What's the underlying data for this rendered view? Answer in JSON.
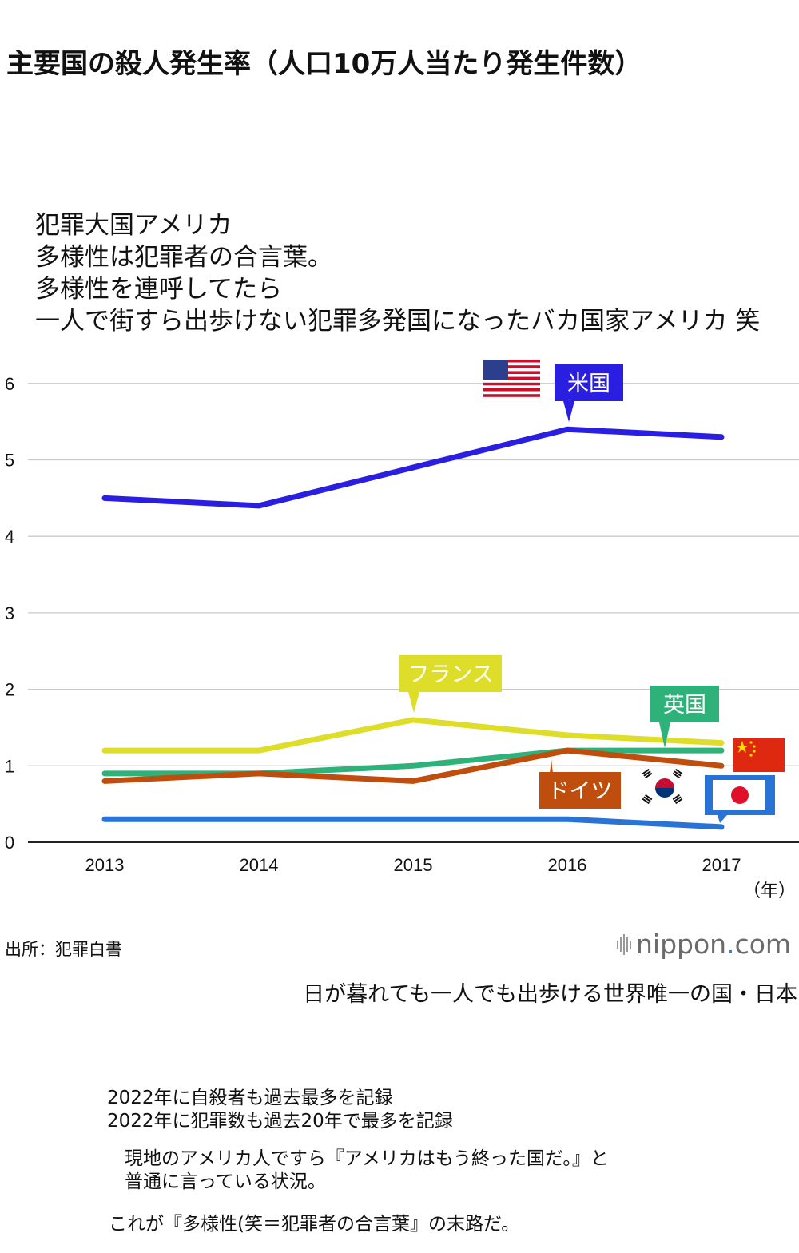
{
  "title": "主要国の殺人発生率（人口10万人当たり発生件数）",
  "caption_lines": [
    "犯罪大国アメリカ",
    "多様性は犯罪者の合言葉。",
    "多様性を連呼してたら",
    "一人で街すら出歩けない犯罪多発国になったバカ国家アメリカ 笑"
  ],
  "chart_data": {
    "type": "line",
    "x": [
      "2013",
      "2014",
      "2015",
      "2016",
      "2017"
    ],
    "xunit": "（年）",
    "ylim": [
      0,
      6
    ],
    "yticks": [
      "0",
      "1",
      "2",
      "3",
      "4",
      "5",
      "6"
    ],
    "grid": true,
    "series": [
      {
        "name": "米国",
        "color": "#2a1fe0",
        "values": [
          4.5,
          4.4,
          4.9,
          5.4,
          5.3
        ]
      },
      {
        "name": "フランス",
        "color": "#dedd2a",
        "values": [
          1.2,
          1.2,
          1.6,
          1.4,
          1.3
        ]
      },
      {
        "name": "英国",
        "color": "#2fb27a",
        "values": [
          0.9,
          0.9,
          1.0,
          1.2,
          1.2
        ]
      },
      {
        "name": "ドイツ",
        "color": "#bf4e0e",
        "values": [
          0.8,
          0.9,
          0.8,
          1.2,
          1.0
        ]
      },
      {
        "name": "",
        "color": "#2a73d6",
        "values": [
          0.3,
          0.3,
          0.3,
          0.3,
          0.2
        ]
      }
    ],
    "flags": [
      "usa-flag",
      "china-flag",
      "south-korea-flag",
      "japan-flag"
    ]
  },
  "source": "出所：犯罪白書",
  "logo": {
    "main": "nippon",
    "dot": ".",
    "suffix": "com"
  },
  "note1": "日が暮れても一人でも出歩ける世界唯一の国・日本",
  "note2_lines": [
    "2022年に自殺者も過去最多を記録",
    "2022年に犯罪数も過去20年で最多を記録"
  ],
  "note3_lines": [
    "現地のアメリカ人ですら『アメリカはもう終った国だ。』と",
    "普通に言っている状況。"
  ],
  "note4": "これが『多様性(笑＝犯罪者の合言葉』の末路だ。"
}
